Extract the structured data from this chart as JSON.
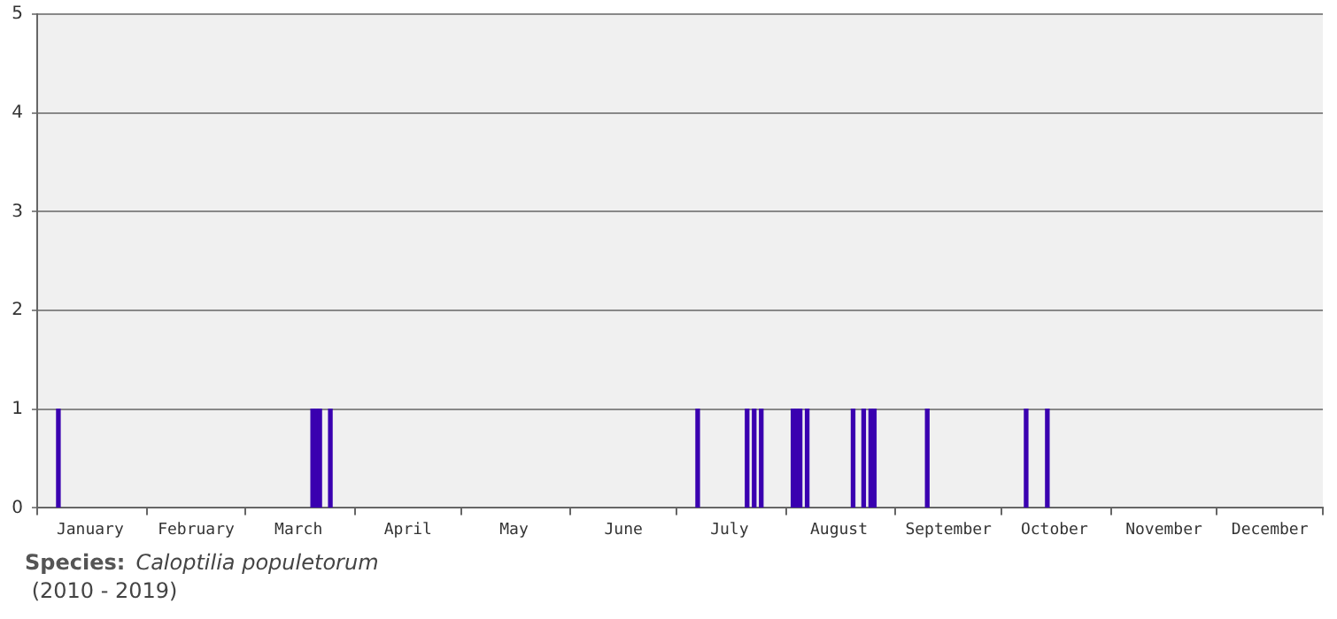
{
  "chart_data": {
    "type": "bar",
    "x": [
      "--01-07",
      "--03-20",
      "--03-21",
      "--03-22",
      "--03-25",
      "--07-07",
      "--07-21",
      "--07-23",
      "--07-25",
      "--08-03",
      "--08-04",
      "--08-05",
      "--08-07",
      "--08-20",
      "--08-23",
      "--08-25",
      "--08-26",
      "--09-10",
      "--10-08",
      "--10-14"
    ],
    "values": [
      1,
      1,
      1,
      1,
      1,
      1,
      1,
      1,
      1,
      1,
      1,
      1,
      1,
      1,
      1,
      1,
      1,
      1,
      1,
      1
    ],
    "color": "#3a00b0",
    "xlim": [
      "--01-01",
      "--12-31"
    ],
    "xticks": [
      {
        "value": "--01-01",
        "label": null
      },
      {
        "value": "--01-16",
        "label": "January"
      },
      {
        "value": "--02-01",
        "label": null
      },
      {
        "value": "--02-15",
        "label": "February"
      },
      {
        "value": "--03-01",
        "label": null
      },
      {
        "value": "--03-16",
        "label": "March"
      },
      {
        "value": "--04-01",
        "label": null
      },
      {
        "value": "--04-16",
        "label": "April"
      },
      {
        "value": "--05-01",
        "label": null
      },
      {
        "value": "--05-16",
        "label": "May"
      },
      {
        "value": "--06-01",
        "label": null
      },
      {
        "value": "--06-16",
        "label": "June"
      },
      {
        "value": "--07-01",
        "label": null
      },
      {
        "value": "--07-16",
        "label": "July"
      },
      {
        "value": "--08-01",
        "label": null
      },
      {
        "value": "--08-16",
        "label": "August"
      },
      {
        "value": "--09-01",
        "label": null
      },
      {
        "value": "--09-16",
        "label": "September"
      },
      {
        "value": "--10-01",
        "label": null
      },
      {
        "value": "--10-16",
        "label": "October"
      },
      {
        "value": "--11-01",
        "label": null
      },
      {
        "value": "--11-16",
        "label": "November"
      },
      {
        "value": "--12-01",
        "label": null
      },
      {
        "value": "--12-16",
        "label": "December"
      },
      {
        "value": "--12-31",
        "label": null
      }
    ],
    "ylim": [
      0,
      5
    ],
    "yticks": [
      0,
      1,
      2,
      3,
      4,
      5
    ],
    "grid": "y",
    "legend": false,
    "annotations": [
      "Species:",
      "Caloptilia populetorum",
      "(2010 - 2019)"
    ]
  }
}
